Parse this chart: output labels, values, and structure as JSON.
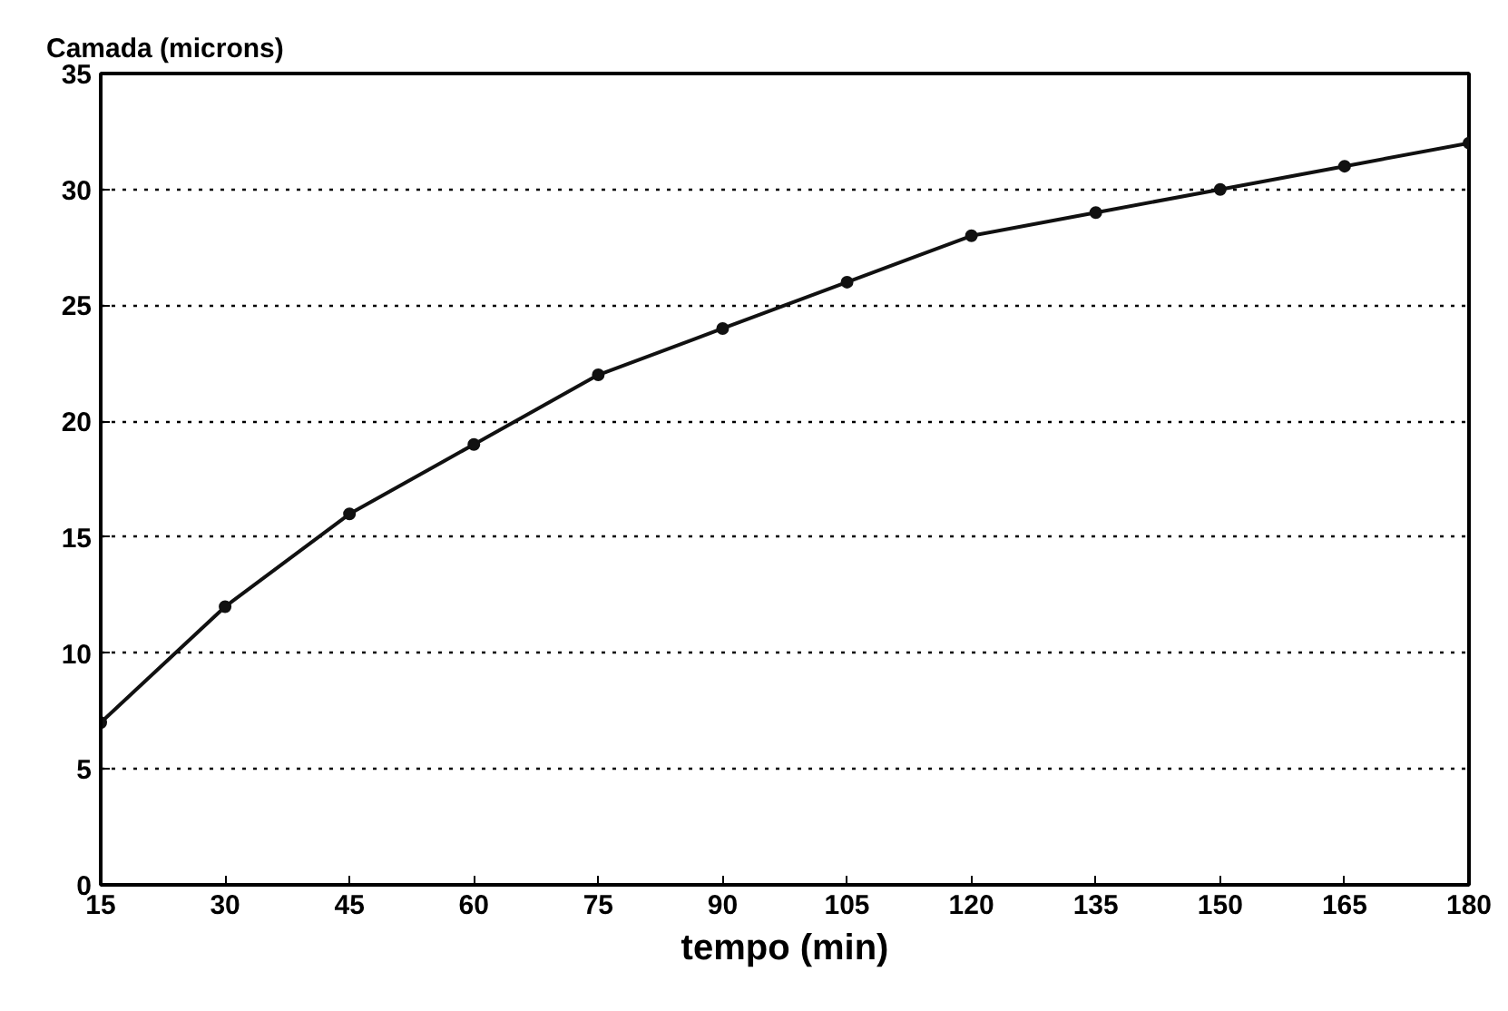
{
  "chart_data": {
    "type": "line",
    "ylabel": "Camada (microns)",
    "xlabel": "tempo (min)",
    "x": [
      15,
      30,
      45,
      60,
      75,
      90,
      105,
      120,
      135,
      150,
      165,
      180
    ],
    "series": [
      {
        "color": "#111111",
        "values": [
          7,
          12,
          16,
          19,
          22,
          24,
          26,
          28,
          29,
          30,
          31,
          32
        ]
      }
    ],
    "xlim": [
      15,
      180
    ],
    "ylim": [
      0,
      35
    ],
    "xticks": [
      15,
      30,
      45,
      60,
      75,
      90,
      105,
      120,
      135,
      150,
      165,
      180
    ],
    "yticks": [
      0,
      5,
      10,
      15,
      20,
      25,
      30,
      35
    ],
    "grid": "y",
    "marker": "circle",
    "line_style": "solid"
  }
}
